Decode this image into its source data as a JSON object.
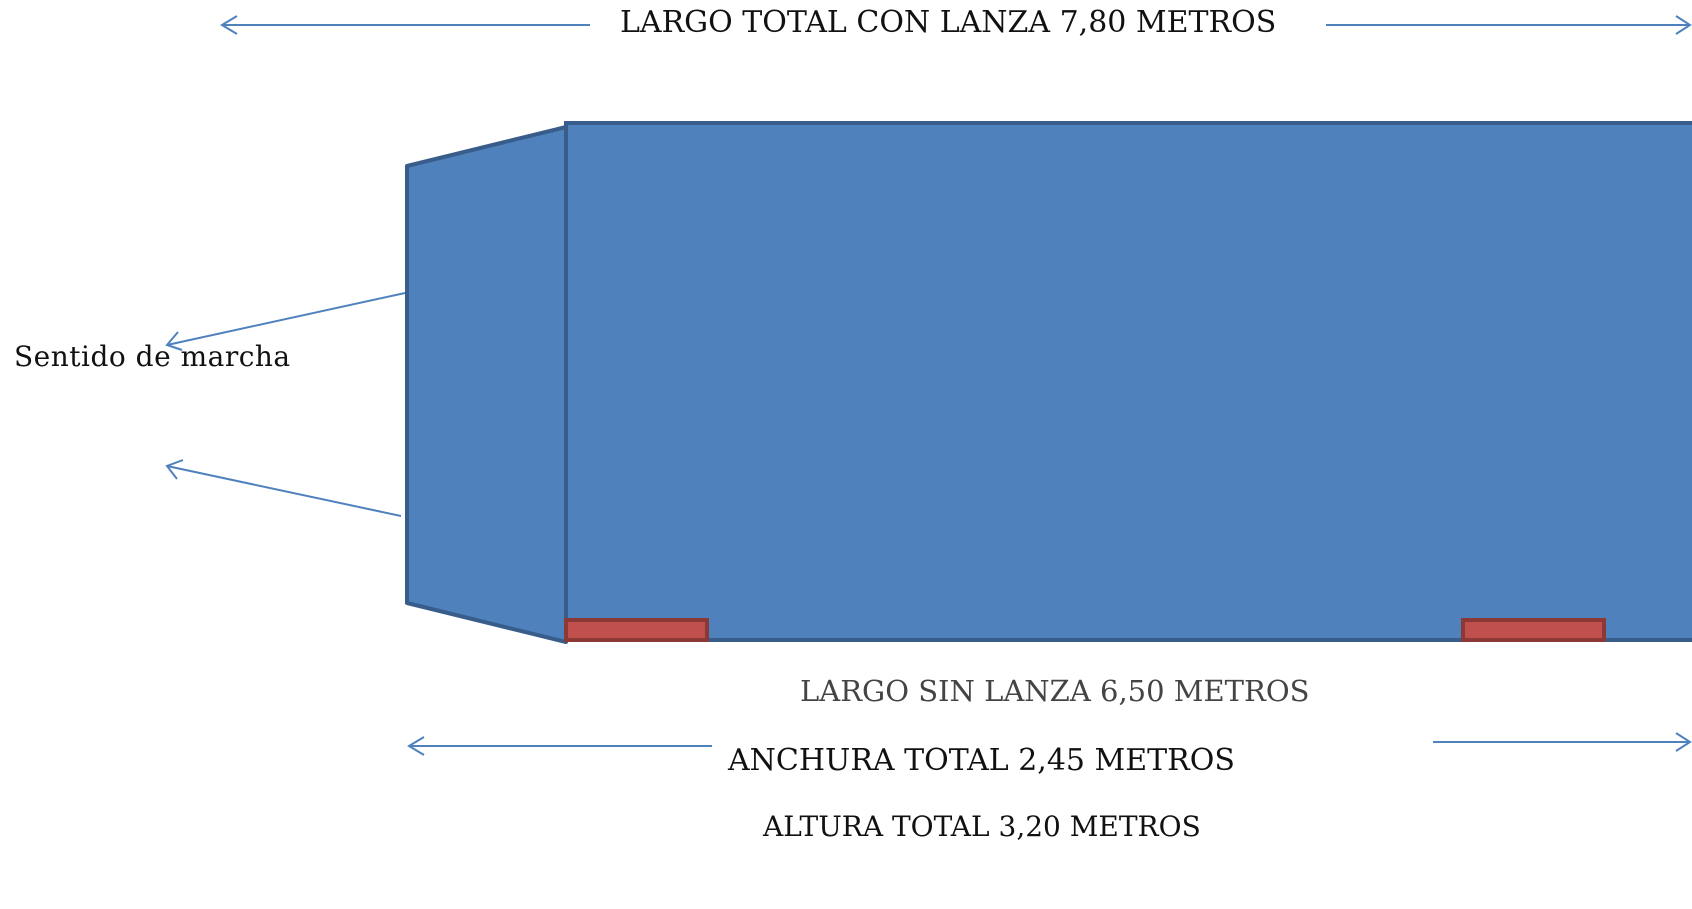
{
  "dimensions": {
    "largo_con_lanza": "LARGO TOTAL CON LANZA 7,80 METROS",
    "largo_sin_lanza": "LARGO SIN LANZA 6,50 METROS",
    "anchura": "ANCHURA TOTAL 2,45 METROS",
    "altura": "ALTURA TOTAL 3,20 METROS"
  },
  "direction": {
    "label": "Sentido de marcha"
  },
  "colors": {
    "body_fill": "#4f81bd",
    "body_stroke": "#385d8a",
    "wheel_fill": "#c0504d",
    "wheel_stroke": "#8c3836",
    "arrow": "#4f81bd"
  }
}
